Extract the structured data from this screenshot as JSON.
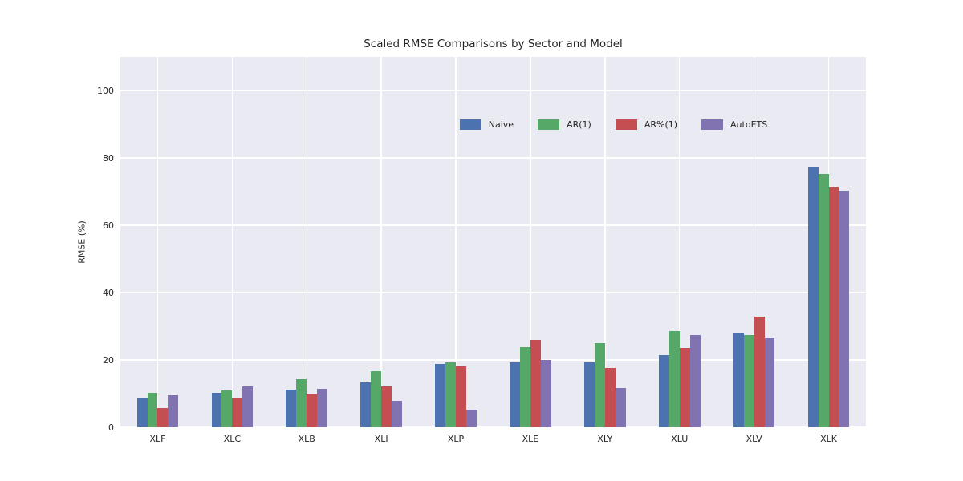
{
  "title": "Scaled RMSE Comparisons by Sector and Model",
  "chart_data": {
    "type": "bar",
    "title": "Scaled RMSE Comparisons by Sector and Model",
    "xlabel": "",
    "ylabel": "RMSE (%)",
    "categories": [
      "XLF",
      "XLC",
      "XLB",
      "XLI",
      "XLP",
      "XLE",
      "XLY",
      "XLU",
      "XLV",
      "XLK"
    ],
    "series": [
      {
        "name": "Naive",
        "color": "#4C72B0",
        "values": [
          8.8,
          10.3,
          11.2,
          13.4,
          18.9,
          19.3,
          19.3,
          21.4,
          27.9,
          77.3
        ]
      },
      {
        "name": "AR(1)",
        "color": "#55A868",
        "values": [
          10.2,
          11.0,
          14.3,
          16.6,
          19.3,
          23.9,
          24.9,
          28.5,
          27.5,
          75.3
        ]
      },
      {
        "name": "AR%(1)",
        "color": "#C44E52",
        "values": [
          5.8,
          8.8,
          9.8,
          12.2,
          18.2,
          26.0,
          17.7,
          23.6,
          32.9,
          71.5
        ]
      },
      {
        "name": "AutoETS",
        "color": "#8172B2",
        "values": [
          9.5,
          12.1,
          11.5,
          7.8,
          5.2,
          19.9,
          11.6,
          27.4,
          26.7,
          70.3
        ]
      }
    ],
    "ylim": [
      0,
      110
    ],
    "yticks": [
      0,
      20,
      40,
      60,
      80,
      100
    ],
    "grid": true,
    "legend_position": "top-center",
    "plot_bg_color": "#EAEAF2",
    "grid_color": "#FFFFFF",
    "text_color": "#262626"
  }
}
